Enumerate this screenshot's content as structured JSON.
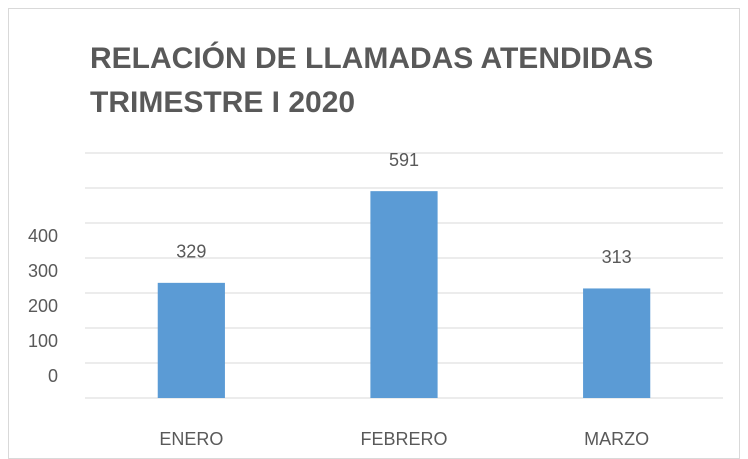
{
  "chart_data": {
    "type": "bar",
    "title": [
      "RELACIÓN DE LLAMADAS ATENDIDAS",
      "TRIMESTRE I 2020"
    ],
    "categories": [
      "ENERO",
      "FEBRERO",
      "MARZO"
    ],
    "values": [
      329,
      591,
      313
    ],
    "color": "#5b9bd5",
    "ylim": [
      0,
      700
    ],
    "yticks": [
      0,
      100,
      200,
      300,
      400
    ],
    "grid": true
  }
}
